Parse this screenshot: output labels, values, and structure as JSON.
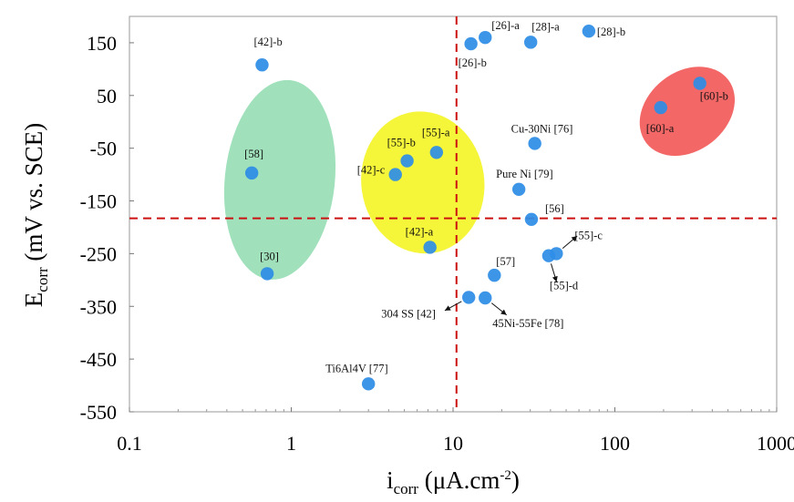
{
  "chart_data": {
    "type": "scatter",
    "x_scale": "log",
    "xlim": [
      0.1,
      1000
    ],
    "ylim": [
      -550,
      200
    ],
    "x_ticks": [
      {
        "value": 0.1,
        "label": "0.1"
      },
      {
        "value": 1,
        "label": "1"
      },
      {
        "value": 10,
        "label": "10"
      },
      {
        "value": 100,
        "label": "100"
      },
      {
        "value": 1000,
        "label": "1000"
      }
    ],
    "y_ticks": [
      {
        "value": 150,
        "label": "150"
      },
      {
        "value": 50,
        "label": "50"
      },
      {
        "value": -50,
        "label": "-50"
      },
      {
        "value": -150,
        "label": "-150"
      },
      {
        "value": -250,
        "label": "-250"
      },
      {
        "value": -350,
        "label": "-350"
      },
      {
        "value": -450,
        "label": "-450"
      },
      {
        "value": -550,
        "label": "-550"
      }
    ],
    "xlabel": {
      "main": "i",
      "sub": "corr",
      "text": "(μA.cm",
      "sup": "-2",
      "close": ")"
    },
    "ylabel": {
      "main": "E",
      "sub": "corr",
      "text": "(mV vs. SCE)"
    },
    "reference_lines": [
      {
        "axis": "x",
        "value": 10.5,
        "color": "#cc1111",
        "style": "dashed"
      },
      {
        "axis": "y",
        "value": -183,
        "color": "#cc1111",
        "style": "dashed"
      }
    ],
    "regions": [
      {
        "name": "green-group",
        "color": "#8fdcb0",
        "opacity": 0.85,
        "cx": 0.85,
        "cy": -110,
        "rx_decades": 0.34,
        "ry_mv": 190,
        "rotation_deg": 6
      },
      {
        "name": "yellow-group",
        "color": "#f3f316",
        "opacity": 0.85,
        "cx": 6.5,
        "cy": -115,
        "rx_decades": 0.38,
        "ry_mv": 135,
        "rotation_deg": -8
      },
      {
        "name": "red-group",
        "color": "#f25a5a",
        "opacity": 0.92,
        "cx": 280,
        "cy": 20,
        "rx_decades": 0.32,
        "ry_mv": 75,
        "rotation_deg": -38
      }
    ],
    "point_color": "#2e8de6",
    "points": [
      {
        "label": "[42]-b",
        "x": 0.66,
        "y": 108,
        "label_dx": -9,
        "label_dy": -21
      },
      {
        "label": "[58]",
        "x": 0.57,
        "y": -97,
        "label_dx": -8,
        "label_dy": -17
      },
      {
        "label": "[30]",
        "x": 0.71,
        "y": -288,
        "label_dx": -8,
        "label_dy": -15
      },
      {
        "label": "[55]-a",
        "x": 7.9,
        "y": -58,
        "label_dx": -16,
        "label_dy": -18
      },
      {
        "label": "[55]-b",
        "x": 5.2,
        "y": -74,
        "label_dx": -22,
        "label_dy": -16
      },
      {
        "label": "[42]-c",
        "x": 4.4,
        "y": -100,
        "label_dx": -42,
        "label_dy": -1
      },
      {
        "label": "[42]-a",
        "x": 7.2,
        "y": -238,
        "label_dx": -27,
        "label_dy": -13
      },
      {
        "label": "[26]-a",
        "x": 15.8,
        "y": 160,
        "label_dx": 7,
        "label_dy": -9
      },
      {
        "label": "[26]-b",
        "x": 12.9,
        "y": 148,
        "label_dx": -14,
        "label_dy": 25
      },
      {
        "label": "[28]-a",
        "x": 30.2,
        "y": 151,
        "label_dx": 1,
        "label_dy": -13
      },
      {
        "label": "[28]-b",
        "x": 69,
        "y": 172,
        "label_dx": 9,
        "label_dy": 5
      },
      {
        "label": "Cu-30Ni [76]",
        "x": 32,
        "y": -41,
        "label_dx": -26,
        "label_dy": -12
      },
      {
        "label": "Pure Ni [79]",
        "x": 25.5,
        "y": -128,
        "label_dx": -25,
        "label_dy": -13
      },
      {
        "label": "[56]",
        "x": 30.5,
        "y": -185,
        "label_dx": 15,
        "label_dy": -8
      },
      {
        "label": "[57]",
        "x": 18,
        "y": -291,
        "label_dx": 2,
        "label_dy": -11
      },
      {
        "label": "304 SS [42]",
        "x": 12.5,
        "y": -333,
        "label_dx": -96,
        "label_dy": 22
      },
      {
        "label": "45Ni-55Fe [78]",
        "x": 15.8,
        "y": -334,
        "label_dx": 8,
        "label_dy": 32
      },
      {
        "label": "[55]-c",
        "x": 43.5,
        "y": -250,
        "label_dx": 20,
        "label_dy": -16
      },
      {
        "label": "[55]-d",
        "x": 39,
        "y": -254,
        "label_dx": 1,
        "label_dy": 37
      },
      {
        "label": "Ti6Al4V [77]",
        "x": 3.0,
        "y": -497,
        "label_dx": -47,
        "label_dy": -13
      },
      {
        "label": "[60]-a",
        "x": 192,
        "y": 27,
        "label_dx": -16,
        "label_dy": 27
      },
      {
        "label": "[60]-b",
        "x": 335,
        "y": 73,
        "label_dx": 0,
        "label_dy": 18
      }
    ],
    "arrows": [
      {
        "from_label": "304 SS [42]",
        "dir": [
          -1,
          0.55
        ]
      },
      {
        "from_label": "45Ni-55Fe [78]",
        "dir": [
          1,
          0.8
        ]
      },
      {
        "from_label": "[55]-c",
        "dir": [
          1,
          -0.85
        ]
      },
      {
        "from_label": "[55]-d",
        "dir": [
          0.3,
          1
        ]
      }
    ]
  }
}
